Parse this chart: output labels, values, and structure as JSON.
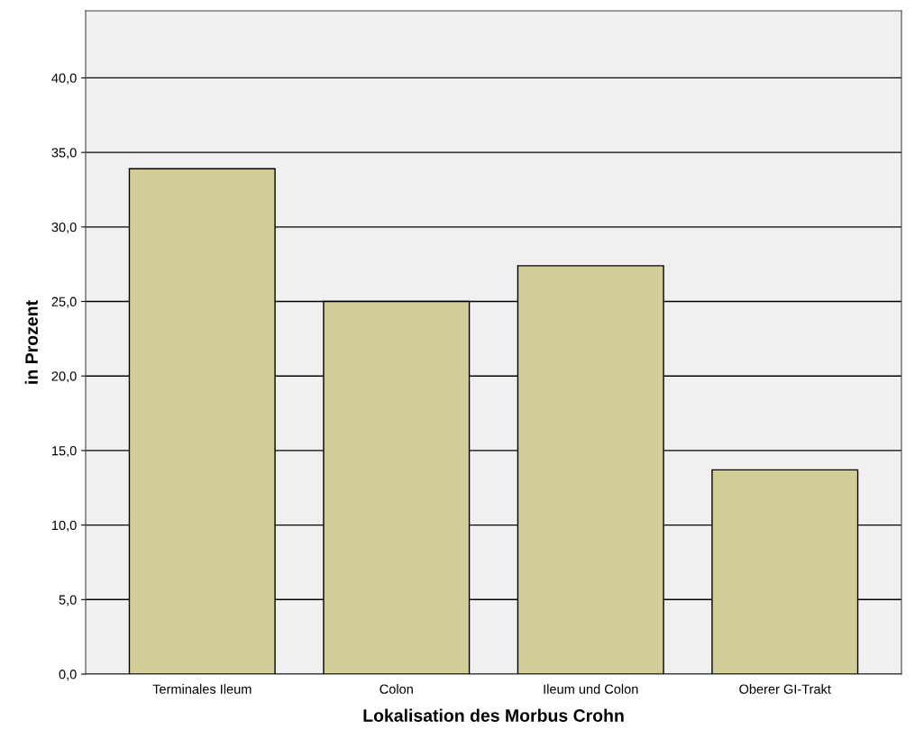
{
  "chart_data": {
    "type": "bar",
    "xlabel": "Lokalisation des Morbus Crohn",
    "ylabel": "in Prozent",
    "categories": [
      "Terminales Ileum",
      "Colon",
      "Ileum und Colon",
      "Oberer GI-Trakt"
    ],
    "values": [
      33.9,
      25.0,
      27.4,
      13.7
    ],
    "color": "#d3ce97",
    "ylim": [
      0,
      44.5
    ],
    "yticks": [
      {
        "value": 0,
        "label": "0,0"
      },
      {
        "value": 5,
        "label": "5,0"
      },
      {
        "value": 10,
        "label": "10,0"
      },
      {
        "value": 15,
        "label": "15,0"
      },
      {
        "value": 20,
        "label": "20,0"
      },
      {
        "value": 25,
        "label": "25,0"
      },
      {
        "value": 30,
        "label": "30,0"
      },
      {
        "value": 35,
        "label": "35,0"
      },
      {
        "value": 40,
        "label": "40,0"
      }
    ],
    "grid": "y"
  }
}
